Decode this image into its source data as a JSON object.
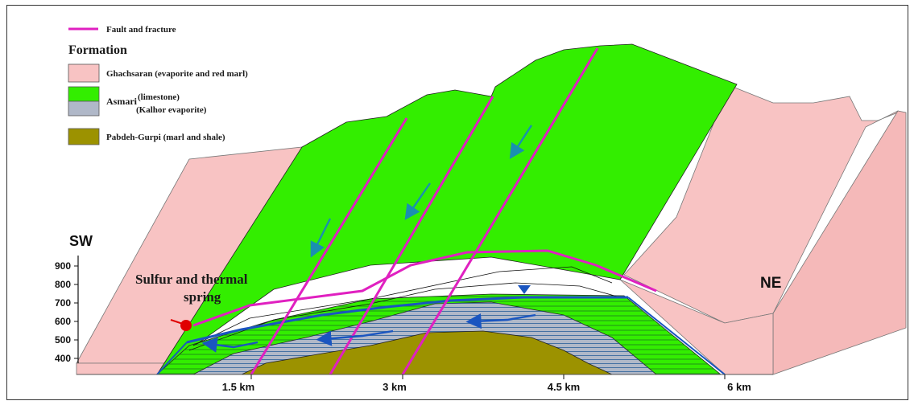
{
  "legend": {
    "fault_label": "Fault and fracture",
    "formation_title": "Formation",
    "ghachsaran_label": "Ghachsaran (evaporite and red marl)",
    "asmari_label": "Asmari",
    "asmari_limestone": "(limestone)",
    "asmari_kalhor": "(Kalhor evaporite)",
    "pabdeh_label": "Pabdeh-Gurpi (marl and shale)"
  },
  "labels": {
    "sw": "SW",
    "ne": "NE",
    "spring_line1": "Sulfur and thermal",
    "spring_line2": "spring"
  },
  "axes": {
    "elevation_ticks": [
      "900",
      "800",
      "700",
      "600",
      "500",
      "400"
    ],
    "distance_ticks": [
      "1.5 km",
      "3 km",
      "4.5 km",
      "6 km"
    ]
  },
  "colors": {
    "ghachsaran": "#f8c3c3",
    "asmari_limestone": "#33ee00",
    "kalhor_evaporite": "#b0b8c8",
    "pabdeh_gurpi": "#9c9200",
    "fault": "#e020c0",
    "water_table": "#1a55c0",
    "flow_arrow": "#1a8fb0",
    "spring": "#e00000"
  }
}
